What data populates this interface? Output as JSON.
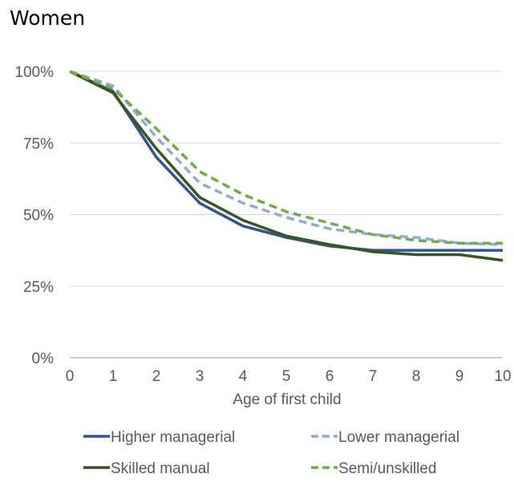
{
  "chart_data": {
    "type": "line",
    "title": "Women",
    "xlabel": "Age of first child",
    "ylabel": "",
    "x": [
      0,
      1,
      2,
      3,
      4,
      5,
      6,
      7,
      8,
      9,
      10
    ],
    "xlim": [
      0,
      10
    ],
    "ylim": [
      0,
      100
    ],
    "yticks": [
      "0%",
      "25%",
      "50%",
      "75%",
      "100%"
    ],
    "xticks": [
      "0",
      "1",
      "2",
      "3",
      "4",
      "5",
      "6",
      "7",
      "8",
      "9",
      "10"
    ],
    "grid": "horizontal",
    "legend": "bottom",
    "series": [
      {
        "name": "Higher managerial",
        "color": "#2f5597",
        "dash": "solid",
        "values": [
          100,
          93,
          70,
          54,
          46,
          42,
          39,
          37.5,
          37.5,
          37.5,
          37.5
        ]
      },
      {
        "name": "Lower managerial",
        "color": "#8faadc",
        "dash": "dashed",
        "values": [
          100,
          95,
          77,
          61,
          54,
          49,
          45,
          43,
          42,
          40,
          39.5
        ]
      },
      {
        "name": "Skilled manual",
        "color": "#375623",
        "dash": "solid",
        "values": [
          100,
          92.5,
          73,
          56,
          48,
          42.5,
          39.5,
          37,
          36,
          36,
          34
        ]
      },
      {
        "name": "Semi/unskilled",
        "color": "#70ad47",
        "dash": "dashed",
        "values": [
          100,
          94,
          80,
          65,
          57,
          51,
          47,
          43,
          41,
          40,
          40
        ]
      }
    ]
  }
}
